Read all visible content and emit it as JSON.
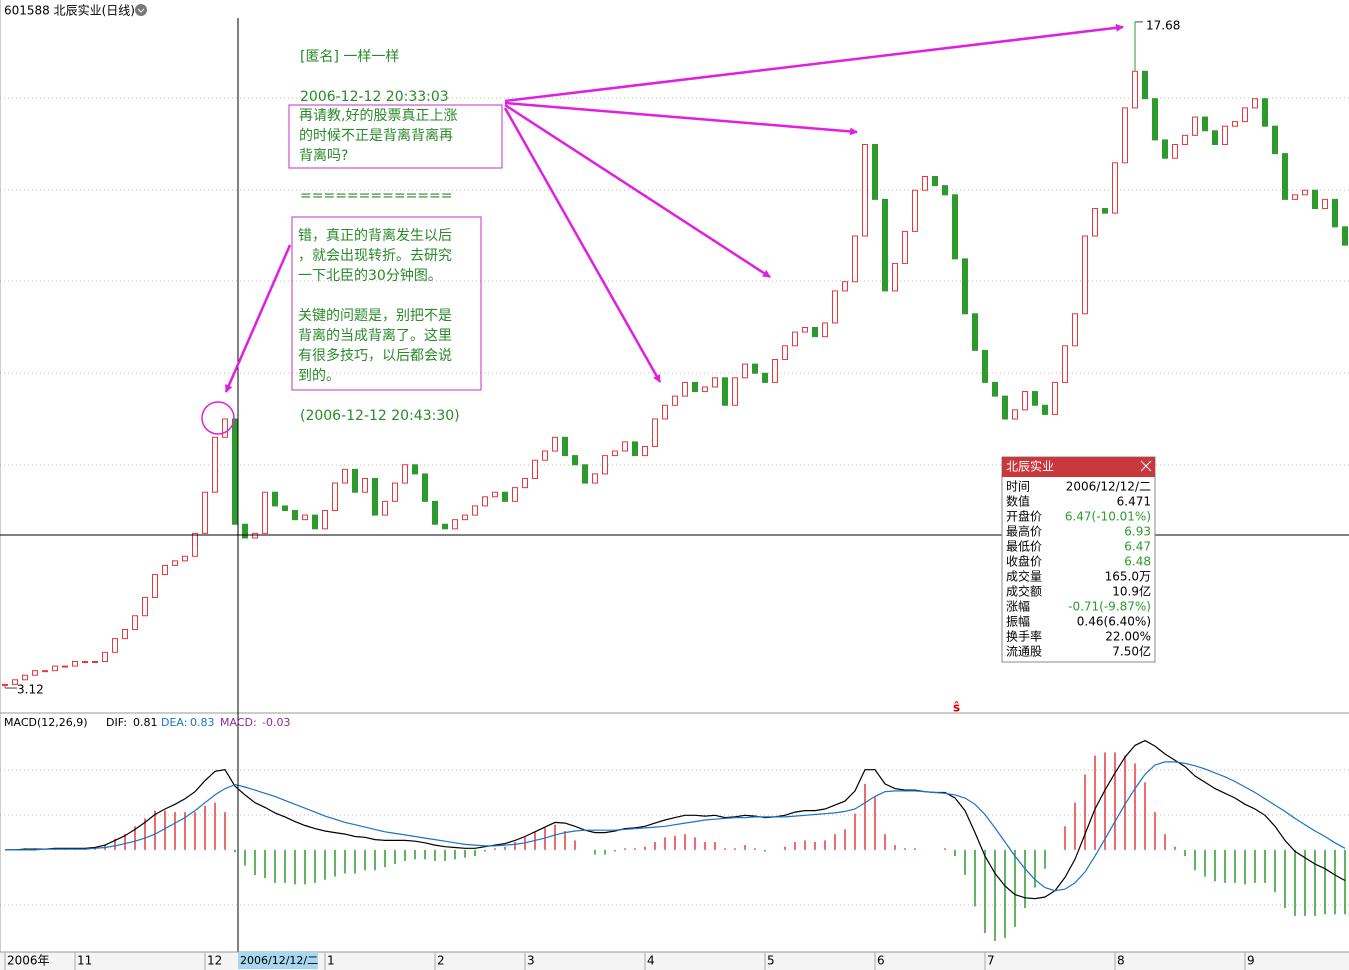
{
  "chart_data": {
    "type": "candlestick",
    "title": "601588 北辰实业(日线)",
    "marker": "ŝ",
    "up_color": "#e8383d",
    "down_color": "#2e9a2e",
    "ylim": [
      2.64,
      17.83
    ],
    "high": 17.68,
    "low": 3.12,
    "categories": [
      "2006年",
      null,
      null,
      null,
      null,
      null,
      null,
      "11",
      null,
      null,
      null,
      null,
      null,
      null,
      null,
      null,
      null,
      null,
      null,
      null,
      "12",
      null,
      null,
      null,
      null,
      null,
      null,
      null,
      null,
      null,
      null,
      null,
      "1",
      null,
      null,
      null,
      null,
      null,
      null,
      null,
      null,
      null,
      null,
      "2",
      null,
      null,
      null,
      null,
      null,
      null,
      null,
      null,
      "3",
      null,
      null,
      null,
      null,
      null,
      null,
      null,
      null,
      null,
      null,
      null,
      "4",
      null,
      null,
      null,
      null,
      null,
      null,
      null,
      null,
      null,
      null,
      null,
      "5",
      null,
      null,
      null,
      null,
      null,
      null,
      null,
      null,
      null,
      null,
      "6",
      null,
      null,
      null,
      null,
      null,
      null,
      null,
      null,
      null,
      null,
      "7",
      null,
      null,
      null,
      null,
      null,
      null,
      null,
      null,
      null,
      null,
      null,
      null,
      "8",
      null,
      null,
      null,
      null,
      null,
      null,
      null,
      null,
      null,
      null,
      null,
      null,
      "9",
      null,
      null,
      null,
      null,
      null,
      null,
      null,
      null,
      null,
      null
    ],
    "close": [
      3.2,
      3.3,
      3.4,
      3.5,
      3.5,
      3.6,
      3.6,
      3.7,
      3.7,
      3.7,
      3.9,
      4.2,
      4.4,
      4.7,
      5.1,
      5.6,
      5.8,
      5.9,
      6.0,
      6.5,
      7.4,
      8.6,
      9.0,
      6.7,
      6.4,
      6.5,
      7.4,
      7.1,
      7.0,
      6.8,
      6.9,
      6.6,
      7.0,
      7.6,
      7.9,
      7.4,
      7.7,
      6.9,
      7.2,
      7.6,
      8.0,
      7.8,
      7.2,
      6.7,
      6.6,
      6.8,
      6.9,
      7.1,
      7.3,
      7.4,
      7.2,
      7.5,
      7.7,
      8.1,
      8.3,
      8.6,
      8.2,
      8.0,
      7.6,
      7.8,
      8.2,
      8.3,
      8.5,
      8.2,
      8.4,
      9.0,
      9.3,
      9.5,
      9.8,
      9.6,
      9.7,
      9.9,
      9.3,
      9.9,
      10.2,
      10.0,
      9.8,
      10.3,
      10.6,
      10.9,
      11.0,
      10.8,
      11.1,
      11.8,
      12.0,
      13.0,
      15.0,
      13.8,
      11.8,
      12.4,
      13.1,
      14.0,
      14.3,
      14.1,
      13.9,
      12.5,
      11.3,
      10.5,
      9.8,
      9.5,
      9.0,
      9.2,
      9.6,
      9.3,
      9.1,
      9.8,
      10.6,
      11.3,
      13.0,
      13.6,
      13.5,
      14.6,
      15.8,
      16.6,
      16.0,
      15.1,
      14.7,
      15.0,
      15.2,
      15.6,
      15.3,
      15.0,
      15.4,
      15.5,
      15.8,
      16.0,
      15.4,
      14.8,
      13.8,
      13.9,
      14.0,
      13.6,
      13.8,
      13.2,
      12.8
    ],
    "macd": {
      "title": "MACD(12,26,9)",
      "dif_label": "DIF:",
      "dif": 0.81,
      "dea_label": "DEA:",
      "dea": 0.83,
      "macd_label": "MACD:",
      "macd": -0.03,
      "ylim": [
        -1.3,
        1.5
      ],
      "up_color": "#e8383d",
      "down_color": "#2e9a2e",
      "series": [
        {
          "color": "#000000",
          "values": [
            0.0,
            0.0,
            0.01,
            0.01,
            0.01,
            0.02,
            0.02,
            0.02,
            0.02,
            0.03,
            0.06,
            0.12,
            0.18,
            0.26,
            0.35,
            0.45,
            0.52,
            0.58,
            0.65,
            0.74,
            0.88,
            1.0,
            1.02,
            0.81,
            0.7,
            0.6,
            0.54,
            0.47,
            0.42,
            0.36,
            0.31,
            0.27,
            0.24,
            0.22,
            0.2,
            0.17,
            0.16,
            0.13,
            0.12,
            0.12,
            0.12,
            0.11,
            0.09,
            0.06,
            0.04,
            0.03,
            0.02,
            0.02,
            0.04,
            0.06,
            0.08,
            0.12,
            0.17,
            0.23,
            0.29,
            0.35,
            0.34,
            0.3,
            0.25,
            0.22,
            0.22,
            0.24,
            0.27,
            0.28,
            0.3,
            0.34,
            0.38,
            0.41,
            0.44,
            0.44,
            0.43,
            0.44,
            0.41,
            0.42,
            0.44,
            0.43,
            0.41,
            0.42,
            0.44,
            0.48,
            0.5,
            0.5,
            0.52,
            0.57,
            0.62,
            0.75,
            1.02,
            1.02,
            0.84,
            0.78,
            0.76,
            0.76,
            0.74,
            0.73,
            0.73,
            0.66,
            0.5,
            0.22,
            -0.08,
            -0.3,
            -0.46,
            -0.57,
            -0.61,
            -0.62,
            -0.6,
            -0.52,
            -0.35,
            -0.12,
            0.2,
            0.52,
            0.76,
            0.98,
            1.18,
            1.33,
            1.39,
            1.32,
            1.22,
            1.14,
            1.06,
            0.94,
            0.86,
            0.78,
            0.72,
            0.66,
            0.58,
            0.52,
            0.44,
            0.3,
            0.12,
            -0.02,
            -0.1,
            -0.18,
            -0.24,
            -0.32,
            -0.39
          ]
        },
        {
          "color": "#1a73c8",
          "values": [
            0.0,
            0.0,
            0.0,
            0.0,
            0.01,
            0.01,
            0.01,
            0.01,
            0.01,
            0.02,
            0.03,
            0.05,
            0.08,
            0.11,
            0.15,
            0.2,
            0.27,
            0.34,
            0.41,
            0.5,
            0.6,
            0.7,
            0.78,
            0.83,
            0.8,
            0.76,
            0.72,
            0.68,
            0.63,
            0.58,
            0.53,
            0.48,
            0.43,
            0.39,
            0.35,
            0.32,
            0.29,
            0.26,
            0.23,
            0.21,
            0.19,
            0.17,
            0.15,
            0.13,
            0.11,
            0.09,
            0.07,
            0.06,
            0.05,
            0.05,
            0.06,
            0.07,
            0.09,
            0.12,
            0.15,
            0.19,
            0.22,
            0.24,
            0.25,
            0.25,
            0.25,
            0.25,
            0.26,
            0.27,
            0.28,
            0.29,
            0.3,
            0.32,
            0.34,
            0.36,
            0.38,
            0.39,
            0.4,
            0.41,
            0.41,
            0.42,
            0.42,
            0.42,
            0.42,
            0.43,
            0.44,
            0.45,
            0.46,
            0.47,
            0.49,
            0.52,
            0.6,
            0.68,
            0.74,
            0.75,
            0.75,
            0.75,
            0.74,
            0.73,
            0.72,
            0.7,
            0.66,
            0.58,
            0.45,
            0.28,
            0.1,
            -0.08,
            -0.24,
            -0.38,
            -0.48,
            -0.52,
            -0.5,
            -0.42,
            -0.28,
            -0.08,
            0.14,
            0.36,
            0.58,
            0.78,
            0.96,
            1.08,
            1.12,
            1.12,
            1.1,
            1.07,
            1.03,
            0.98,
            0.93,
            0.87,
            0.8,
            0.73,
            0.65,
            0.57,
            0.49,
            0.4,
            0.32,
            0.24,
            0.17,
            0.09,
            0.02
          ]
        }
      ],
      "histogram": [
        0.0,
        0.0,
        0.02,
        0.02,
        0.0,
        0.02,
        0.02,
        0.02,
        0.02,
        0.02,
        0.06,
        0.14,
        0.2,
        0.3,
        0.4,
        0.5,
        0.5,
        0.48,
        0.48,
        0.48,
        0.56,
        0.6,
        0.48,
        -0.03,
        -0.2,
        -0.32,
        -0.36,
        -0.42,
        -0.42,
        -0.44,
        -0.44,
        -0.42,
        -0.38,
        -0.34,
        -0.3,
        -0.3,
        -0.26,
        -0.26,
        -0.22,
        -0.18,
        -0.14,
        -0.12,
        -0.12,
        -0.14,
        -0.14,
        -0.12,
        -0.1,
        -0.08,
        -0.02,
        0.02,
        0.04,
        0.1,
        0.16,
        0.22,
        0.28,
        0.32,
        0.24,
        0.12,
        0.0,
        -0.06,
        -0.06,
        -0.02,
        0.02,
        0.02,
        0.04,
        0.1,
        0.16,
        0.18,
        0.2,
        0.16,
        0.1,
        0.1,
        0.02,
        0.02,
        0.06,
        0.02,
        -0.02,
        0.0,
        0.04,
        0.1,
        0.12,
        0.1,
        0.12,
        0.2,
        0.26,
        0.46,
        0.84,
        0.68,
        0.2,
        0.06,
        0.02,
        0.02,
        0.0,
        0.0,
        0.02,
        -0.08,
        -0.32,
        -0.72,
        -1.06,
        -1.16,
        -1.12,
        -0.98,
        -0.74,
        -0.48,
        -0.24,
        0.0,
        0.3,
        0.6,
        0.96,
        1.2,
        1.24,
        1.24,
        1.2,
        1.1,
        0.86,
        0.48,
        0.2,
        0.04,
        -0.08,
        -0.26,
        -0.34,
        -0.4,
        -0.42,
        -0.42,
        -0.44,
        -0.42,
        -0.42,
        -0.54,
        -0.74,
        -0.84,
        -0.84,
        -0.84,
        -0.82,
        -0.82,
        -0.82
      ]
    }
  },
  "annotation": {
    "author": "[匿名] 一样一样",
    "time1": "2006-12-12 20:33:03",
    "question": [
      "再请教,好的股票真正上涨",
      "的时候不正是背离背离再",
      "背离吗?"
    ],
    "separator": "=============",
    "reply": [
      [
        "错，真正的背离发生以后",
        "，就会出现转折。去研究",
        "一下北臣的30分钟图。"
      ],
      [
        "关键的问题是，别把不是",
        "背离的当成背离了。这里",
        "有很多技巧，以后都会说",
        "到的。"
      ]
    ],
    "time2": "(2006-12-12 20:43:30)"
  },
  "info_panel": {
    "title": "北辰实业",
    "rows": [
      {
        "label": "时间",
        "value": "2006/12/12/二",
        "color": "#000000"
      },
      {
        "label": "数值",
        "value": "6.471",
        "color": "#000000"
      },
      {
        "label": "开盘价",
        "value": "6.47(-10.01%)",
        "color": "#2e9a2e"
      },
      {
        "label": "最高价",
        "value": "6.93",
        "color": "#2e9a2e"
      },
      {
        "label": "最低价",
        "value": "6.47",
        "color": "#2e9a2e"
      },
      {
        "label": "收盘价",
        "value": "6.48",
        "color": "#2e9a2e"
      },
      {
        "label": "成交量",
        "value": "165.0万",
        "color": "#000000"
      },
      {
        "label": "成交额",
        "value": "10.9亿",
        "color": "#000000"
      },
      {
        "label": "涨幅",
        "value": "-0.71(-9.87%)",
        "color": "#2e9a2e"
      },
      {
        "label": "振幅",
        "value": "0.46(6.40%)",
        "color": "#000000"
      },
      {
        "label": "换手率",
        "value": "22.00%",
        "color": "#000000"
      },
      {
        "label": "流通股",
        "value": "7.50亿",
        "color": "#000000"
      }
    ]
  }
}
